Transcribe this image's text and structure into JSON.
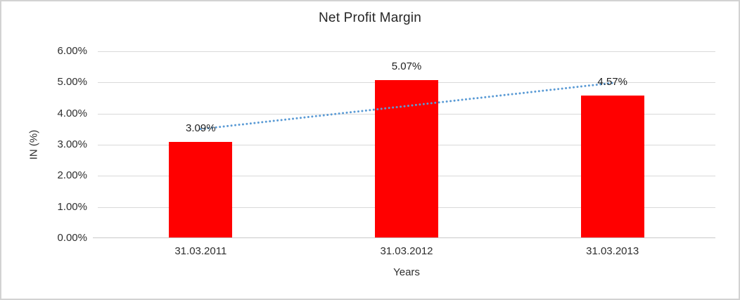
{
  "frame": {
    "background": "#ffffff",
    "border_color": "#d2d2d2"
  },
  "chart_data": {
    "type": "bar",
    "title": "Net Profit Margin",
    "categories": [
      "31.03.2011",
      "31.03.2012",
      "31.03.2013"
    ],
    "values": [
      3.09,
      5.07,
      4.57
    ],
    "value_labels": [
      "3.09%",
      "5.07%",
      "4.57%"
    ],
    "xlabel": "Years",
    "ylabel": "IN (%)",
    "ylim": [
      0,
      6
    ],
    "ytick_labels": [
      "0.00%",
      "1.00%",
      "2.00%",
      "3.00%",
      "4.00%",
      "5.00%",
      "6.00%"
    ],
    "grid": true,
    "legend_position": "none",
    "bar_color": "#ff0000",
    "gridline_color": "#d9d9d9",
    "axisline_color": "#c9c9c9",
    "text_color": "#2e2e2e",
    "trendline": {
      "type": "linear",
      "style": "dotted",
      "color": "#5b9bd5"
    }
  }
}
